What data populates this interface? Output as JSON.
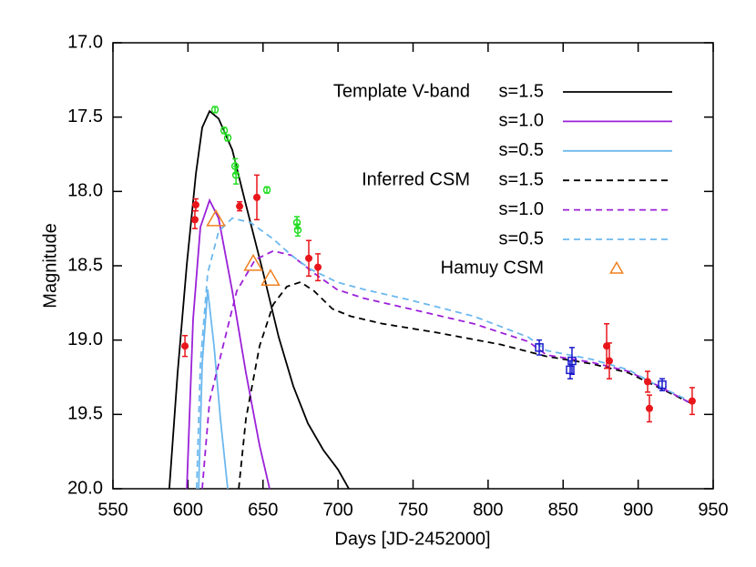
{
  "chart_data": {
    "type": "line",
    "xlabel": "Days [JD-2452000]",
    "ylabel": "Magnitude",
    "xlim": [
      550,
      950
    ],
    "xticks": [
      550,
      600,
      650,
      700,
      750,
      800,
      850,
      900,
      950
    ],
    "ylim": [
      20.0,
      17.0
    ],
    "yticks": [
      {
        "value": 17.0,
        "label": "17.0"
      },
      17.5,
      {
        "value": 18.0,
        "label": "18.0"
      },
      18.5,
      {
        "value": 19.0,
        "label": "19.0"
      },
      19.5,
      {
        "value": 20.0,
        "label": "20.0"
      }
    ],
    "series": [
      {
        "group": "Template V-band",
        "name": "s=1.5",
        "kind": "solid",
        "color": "#000000",
        "x": [
          587.6,
          593.1,
          599.2,
          605.3,
          609.5,
          614.4,
          620.4,
          629.5,
          638.6,
          650.2,
          660.5,
          670.2,
          679.9,
          690.2,
          699.9,
          707.2
        ],
        "values": [
          20.0,
          19.22,
          18.49,
          17.88,
          17.57,
          17.46,
          17.51,
          17.72,
          18.09,
          18.55,
          18.98,
          19.31,
          19.56,
          19.74,
          19.87,
          20.0
        ]
      },
      {
        "name": "s=1.0",
        "kind": "solid",
        "color": "#9b20d8",
        "x": [
          599.2,
          603.4,
          608.3,
          614.4,
          620.4,
          629.5,
          638.6,
          647.7,
          654.4
        ],
        "values": [
          20.0,
          18.86,
          18.24,
          18.06,
          18.18,
          18.67,
          19.22,
          19.71,
          20.0
        ]
      },
      {
        "name": "s=0.5",
        "kind": "solid",
        "color": "#6cb8ee",
        "x": [
          607.1,
          609.5,
          613.1,
          617.4,
          621.6,
          626.5
        ],
        "values": [
          20.0,
          19.16,
          18.66,
          19.04,
          19.53,
          20.0
        ]
      },
      {
        "group": "Inferred CSM",
        "name": "s=1.5",
        "kind": "dashed",
        "color": "#000000",
        "x": [
          633.8,
          638.6,
          647.7,
          656.8,
          665.9,
          675.0,
          684.1,
          696.3,
          708.4,
          729.7,
          766.1,
          808.6,
          838.9,
          869.3,
          893.5,
          911.8,
          934.2
        ],
        "values": [
          20.0,
          19.53,
          19.04,
          18.76,
          18.64,
          18.61,
          18.67,
          18.79,
          18.84,
          18.89,
          18.95,
          19.03,
          19.11,
          19.16,
          19.22,
          19.31,
          19.42
        ]
      },
      {
        "name": "s=1.0",
        "kind": "dashed",
        "color": "#9b20d8",
        "x": [
          609.5,
          614.4,
          623.4,
          632.5,
          644.7,
          656.8,
          669.0,
          684.1,
          699.3,
          717.5,
          747.9,
          790.4,
          826.8,
          838.9,
          869.3,
          893.5,
          911.8,
          934.2
        ],
        "values": [
          20.0,
          19.41,
          19.04,
          18.67,
          18.46,
          18.4,
          18.43,
          18.55,
          18.66,
          18.72,
          18.79,
          18.89,
          19.01,
          19.1,
          19.15,
          19.21,
          19.3,
          19.42
        ]
      },
      {
        "name": "s=0.5",
        "kind": "dashed",
        "color": "#6cb8ee",
        "x": [
          605.8,
          608.3,
          613.1,
          620.4,
          629.5,
          641.7,
          656.8,
          669.0,
          681.1,
          699.3,
          717.5,
          747.9,
          790.4,
          826.8,
          838.9,
          869.3,
          893.5,
          911.8,
          934.2
        ],
        "values": [
          20.0,
          19.16,
          18.55,
          18.27,
          18.18,
          18.21,
          18.32,
          18.43,
          18.52,
          18.61,
          18.66,
          18.73,
          18.84,
          18.98,
          19.07,
          19.13,
          19.2,
          19.3,
          19.41
        ]
      },
      {
        "name": "Hamuy CSM",
        "kind": "triangle",
        "color": "#f08020",
        "x": [
          618.6,
          643.5,
          655.0
        ],
        "values": [
          18.19,
          18.49,
          18.59
        ]
      },
      {
        "kind": "dot",
        "color": "#e8161b",
        "x": [
          598.0,
          604.6,
          605.2,
          634.4,
          645.9,
          680.5,
          686.6,
          879.0,
          880.8,
          906.3,
          907.5,
          936.0
        ],
        "values": [
          19.04,
          18.19,
          18.09,
          18.1,
          18.04,
          18.45,
          18.51,
          19.04,
          19.14,
          19.28,
          19.46,
          19.41
        ],
        "errors": [
          0.07,
          0.06,
          0.04,
          0.03,
          0.15,
          0.12,
          0.09,
          0.15,
          0.12,
          0.07,
          0.09,
          0.09
        ]
      },
      {
        "kind": "circle",
        "color": "#22dd22",
        "x": [
          618.0,
          624.1,
          626.5,
          631.4,
          632.0,
          652.6,
          672.6,
          673.2
        ],
        "values": [
          17.45,
          17.59,
          17.64,
          17.83,
          17.89,
          17.99,
          18.21,
          18.26
        ],
        "errors": [
          0.02,
          0.02,
          0.02,
          0.05,
          0.06,
          0.02,
          0.04,
          0.04
        ]
      },
      {
        "kind": "square",
        "color": "#1a1acc",
        "x": [
          834.1,
          854.7,
          855.9,
          916.0
        ],
        "values": [
          19.05,
          19.2,
          19.14,
          19.3
        ],
        "errors": [
          0.05,
          0.06,
          0.09,
          0.04
        ]
      }
    ]
  }
}
